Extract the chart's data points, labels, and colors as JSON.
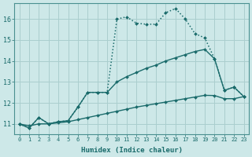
{
  "xlabel": "Humidex (Indice chaleur)",
  "background_color": "#cde8e8",
  "grid_color": "#aacece",
  "line_color": "#1a6b6b",
  "xlim": [
    -0.5,
    23.5
  ],
  "ylim": [
    10.5,
    16.75
  ],
  "yticks": [
    11,
    12,
    13,
    14,
    15,
    16
  ],
  "xticks": [
    0,
    1,
    2,
    3,
    4,
    5,
    6,
    7,
    8,
    9,
    10,
    11,
    12,
    13,
    14,
    15,
    16,
    17,
    18,
    19,
    20,
    21,
    22,
    23
  ],
  "s1_x": [
    0,
    1,
    2,
    3,
    4,
    5,
    6,
    7,
    8,
    9,
    10,
    11,
    12,
    13,
    14,
    15,
    16,
    17,
    18,
    19,
    20,
    21,
    22
  ],
  "s1_y": [
    11.0,
    10.8,
    11.3,
    11.0,
    11.1,
    11.15,
    11.8,
    12.5,
    12.5,
    12.5,
    16.0,
    16.1,
    15.8,
    15.75,
    15.75,
    16.3,
    16.5,
    16.0,
    15.3,
    15.1,
    14.1,
    12.6,
    12.75
  ],
  "s2_x": [
    0,
    1,
    2,
    3,
    4,
    5,
    6,
    7,
    8,
    9,
    10,
    11,
    12,
    13,
    14,
    15,
    16,
    17,
    18,
    19,
    20,
    21,
    22,
    23
  ],
  "s2_y": [
    11.0,
    10.8,
    11.3,
    11.0,
    11.1,
    11.15,
    11.8,
    12.5,
    12.5,
    12.5,
    13.0,
    13.25,
    13.45,
    13.65,
    13.8,
    14.0,
    14.15,
    14.3,
    14.45,
    14.55,
    14.1,
    12.6,
    12.75,
    12.3
  ],
  "s3_x": [
    0,
    1,
    2,
    3,
    4,
    5,
    6,
    7,
    8,
    9,
    10,
    11,
    12,
    13,
    14,
    15,
    16,
    17,
    18,
    19,
    20,
    21,
    22,
    23
  ],
  "s3_y": [
    11.0,
    10.9,
    11.0,
    11.0,
    11.05,
    11.1,
    11.2,
    11.3,
    11.4,
    11.5,
    11.6,
    11.7,
    11.8,
    11.88,
    11.96,
    12.04,
    12.12,
    12.2,
    12.28,
    12.36,
    12.35,
    12.2,
    12.2,
    12.3
  ]
}
